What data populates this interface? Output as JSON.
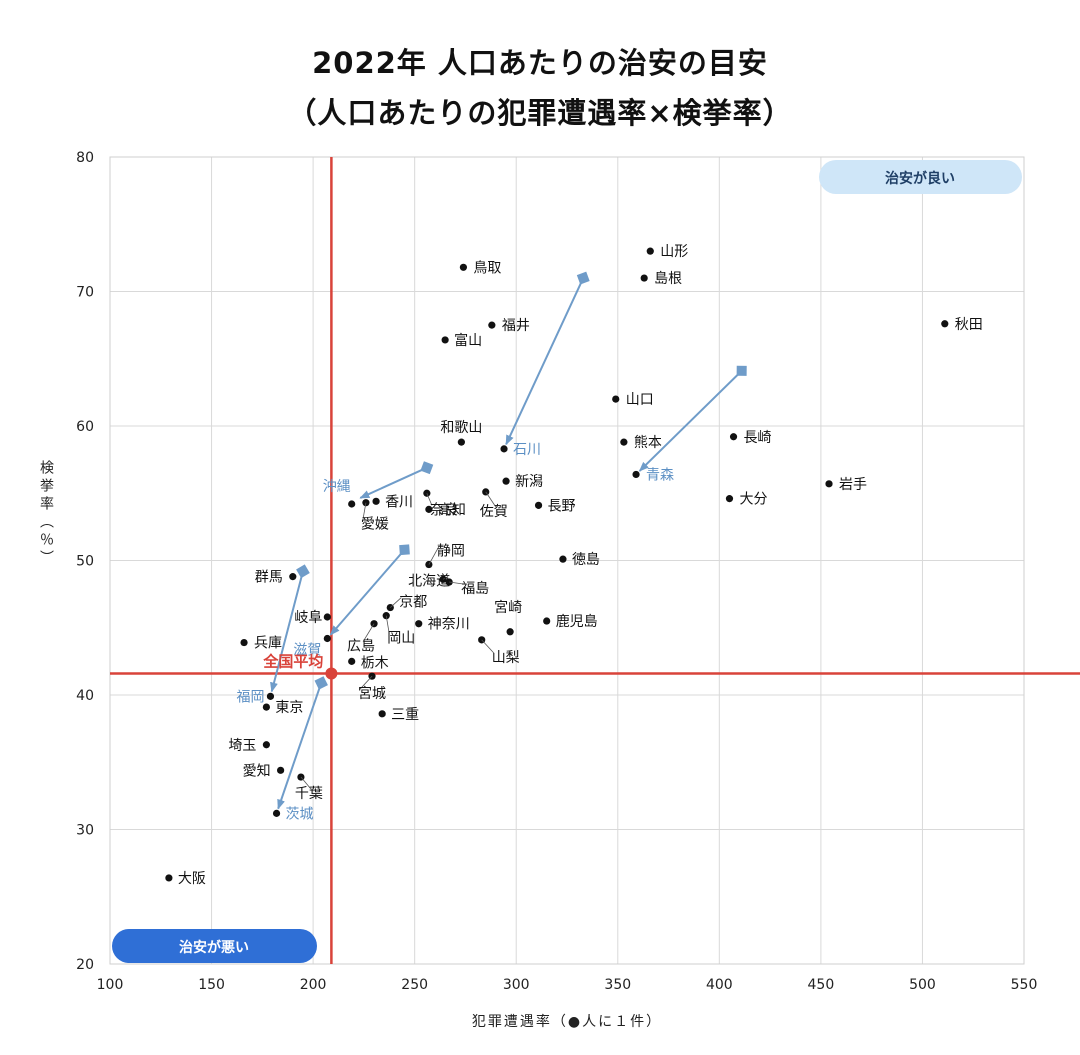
{
  "title": {
    "line1": "2022年 人口あたりの治安の目安",
    "line2": "（人口あたりの犯罪遭遇率×検挙率）"
  },
  "colors": {
    "accent_red": "#d9433a",
    "arrow_blue": "#6f9cc9",
    "label_blue": "#5b8fc4",
    "good_pill": "#cfe6f8",
    "bad_pill": "#2f6fd6",
    "grid": "#d9d9d9"
  },
  "chart_data": {
    "type": "scatter",
    "xlabel": "犯罪遭遇率（●人に１件）",
    "ylabel": "検挙率（％）",
    "xlim": [
      100,
      550
    ],
    "ylim": [
      20,
      80
    ],
    "x_ticks": [
      100,
      150,
      200,
      250,
      300,
      350,
      400,
      450,
      500,
      550
    ],
    "y_ticks": [
      20,
      30,
      40,
      50,
      60,
      70,
      80
    ],
    "grid": true,
    "average": {
      "label": "全国平均",
      "x": 209,
      "y": 41.6
    },
    "quadrant_labels": {
      "good": "治安が良い",
      "bad": "治安が悪い"
    },
    "points": [
      {
        "name": "山形",
        "x": 366,
        "y": 73.0
      },
      {
        "name": "島根",
        "x": 363,
        "y": 71.0
      },
      {
        "name": "鳥取",
        "x": 274,
        "y": 71.8
      },
      {
        "name": "秋田",
        "x": 511,
        "y": 67.6
      },
      {
        "name": "福井",
        "x": 288,
        "y": 67.5
      },
      {
        "name": "富山",
        "x": 265,
        "y": 66.4
      },
      {
        "name": "山口",
        "x": 349,
        "y": 62.0
      },
      {
        "name": "長崎",
        "x": 407,
        "y": 59.2
      },
      {
        "name": "和歌山",
        "x": 273,
        "y": 58.8
      },
      {
        "name": "熊本",
        "x": 353,
        "y": 58.8
      },
      {
        "name": "石川",
        "x": 294,
        "y": 58.3,
        "highlight": true
      },
      {
        "name": "青森",
        "x": 359,
        "y": 56.4,
        "highlight": true
      },
      {
        "name": "岩手",
        "x": 454,
        "y": 55.7
      },
      {
        "name": "新潟",
        "x": 295,
        "y": 55.9
      },
      {
        "name": "大分",
        "x": 405,
        "y": 54.6
      },
      {
        "name": "沖縄",
        "x": 219,
        "y": 54.2,
        "highlight": true
      },
      {
        "name": "香川",
        "x": 231,
        "y": 54.4
      },
      {
        "name": "奈良",
        "x": 256,
        "y": 55.0
      },
      {
        "name": "高知",
        "x": 257,
        "y": 53.8
      },
      {
        "name": "佐賀",
        "x": 285,
        "y": 55.1
      },
      {
        "name": "長野",
        "x": 311,
        "y": 54.1
      },
      {
        "name": "愛媛",
        "x": 226,
        "y": 54.3
      },
      {
        "name": "徳島",
        "x": 323,
        "y": 50.1
      },
      {
        "name": "静岡",
        "x": 257,
        "y": 49.7
      },
      {
        "name": "北海道",
        "x": 264,
        "y": 48.6
      },
      {
        "name": "福島",
        "x": 267,
        "y": 48.4
      },
      {
        "name": "群馬",
        "x": 190,
        "y": 48.8
      },
      {
        "name": "京都",
        "x": 238,
        "y": 46.5
      },
      {
        "name": "岐阜",
        "x": 207,
        "y": 45.8
      },
      {
        "name": "宮崎",
        "x": 297,
        "y": 44.7
      },
      {
        "name": "鹿児島",
        "x": 315,
        "y": 45.5
      },
      {
        "name": "神奈川",
        "x": 252,
        "y": 45.3
      },
      {
        "name": "広島",
        "x": 230,
        "y": 45.3
      },
      {
        "name": "岡山",
        "x": 236,
        "y": 45.9
      },
      {
        "name": "滋賀",
        "x": 207,
        "y": 44.2,
        "highlight": true
      },
      {
        "name": "兵庫",
        "x": 166,
        "y": 43.9
      },
      {
        "name": "山梨",
        "x": 283,
        "y": 44.1
      },
      {
        "name": "栃木",
        "x": 219,
        "y": 42.5
      },
      {
        "name": "宮城",
        "x": 229,
        "y": 41.4
      },
      {
        "name": "福岡",
        "x": 179,
        "y": 39.9,
        "highlight": true
      },
      {
        "name": "東京",
        "x": 177,
        "y": 39.1
      },
      {
        "name": "三重",
        "x": 234,
        "y": 38.6
      },
      {
        "name": "埼玉",
        "x": 177,
        "y": 36.3
      },
      {
        "name": "愛知",
        "x": 184,
        "y": 34.4
      },
      {
        "name": "千葉",
        "x": 194,
        "y": 33.9
      },
      {
        "name": "茨城",
        "x": 182,
        "y": 31.2,
        "highlight": true
      },
      {
        "name": "大阪",
        "x": 129,
        "y": 26.4
      }
    ],
    "movements": [
      {
        "from": [
          333,
          71.0
        ],
        "to": [
          294,
          58.3
        ]
      },
      {
        "from": [
          411,
          64.1
        ],
        "to": [
          359,
          56.4
        ]
      },
      {
        "from": [
          256,
          56.9
        ],
        "to": [
          221,
          54.5
        ]
      },
      {
        "from": [
          245,
          50.8
        ],
        "to": [
          207,
          44.2
        ]
      },
      {
        "from": [
          195,
          49.2
        ],
        "to": [
          179,
          39.9
        ]
      },
      {
        "from": [
          204,
          40.9
        ],
        "to": [
          182,
          31.2
        ]
      }
    ]
  }
}
